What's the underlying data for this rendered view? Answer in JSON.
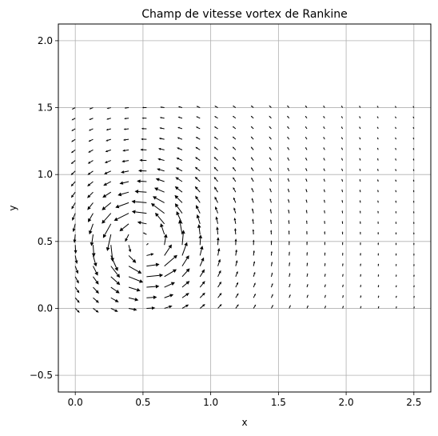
{
  "chart_data": {
    "type": "quiver",
    "title": "Champ de vitesse vortex de Rankine",
    "xlabel": "x",
    "ylabel": "y",
    "xlim": [
      -0.125,
      2.625
    ],
    "ylim": [
      -0.625,
      2.125
    ],
    "xticks": [
      0.0,
      0.5,
      1.0,
      1.5,
      2.0,
      2.5
    ],
    "xtick_labels": [
      "0.0",
      "0.5",
      "1.0",
      "1.5",
      "2.0",
      "2.5"
    ],
    "yticks": [
      -0.5,
      0.0,
      0.5,
      1.0,
      1.5,
      2.0
    ],
    "ytick_labels": [
      "−0.5",
      "0.0",
      "0.5",
      "1.0",
      "1.5",
      "2.0"
    ],
    "grid": true,
    "legend": "none",
    "field": {
      "x_range": [
        0.0,
        2.5
      ],
      "x_count": 20,
      "y_range": [
        0.0,
        1.5
      ],
      "y_count": 20,
      "vortex_center": [
        0.5,
        0.5
      ],
      "core_radius": 0.25,
      "model": "rankine"
    },
    "colors": {
      "arrow": "#000000",
      "grid": "#b0b0b0",
      "axes": "#000000"
    }
  }
}
